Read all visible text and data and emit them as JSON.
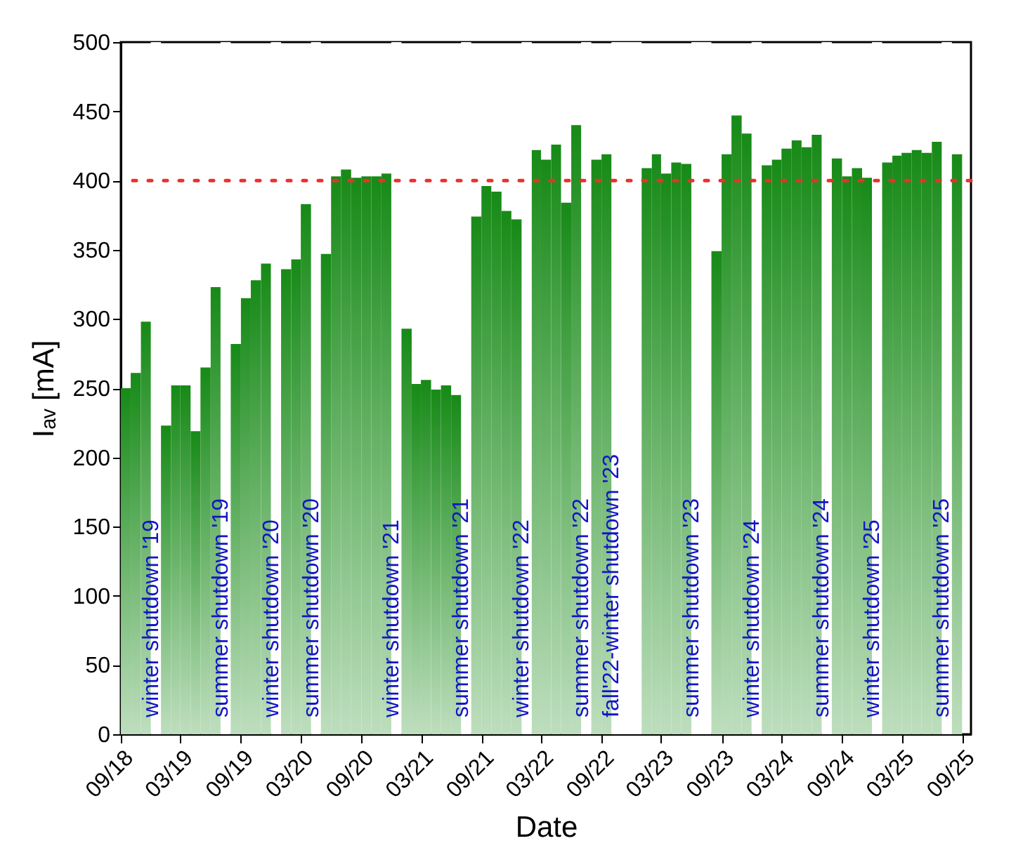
{
  "chart_data": {
    "type": "bar",
    "xlabel": "Date",
    "ylabel": "Iₐᵥ [mA]",
    "series": [
      {
        "color": "#178a17",
        "x": [
          "2018-09",
          "2018-10",
          "2018-11",
          "2019-01",
          "2019-02",
          "2019-03",
          "2019-04",
          "2019-05",
          "2019-06",
          "2019-08",
          "2019-09",
          "2019-10",
          "2019-11",
          "2020-01",
          "2020-02",
          "2020-03",
          "2020-05",
          "2020-06",
          "2020-07",
          "2020-08",
          "2020-09",
          "2020-10",
          "2020-11",
          "2021-01",
          "2021-02",
          "2021-03",
          "2021-04",
          "2021-05",
          "2021-06",
          "2021-08",
          "2021-09",
          "2021-10",
          "2021-11",
          "2021-12",
          "2022-02",
          "2022-03",
          "2022-04",
          "2022-05",
          "2022-06",
          "2022-08",
          "2022-09",
          "2023-01",
          "2023-02",
          "2023-03",
          "2023-04",
          "2023-05",
          "2023-08",
          "2023-09",
          "2023-10",
          "2023-11",
          "2024-01",
          "2024-02",
          "2024-03",
          "2024-04",
          "2024-05",
          "2024-06",
          "2024-08",
          "2024-09",
          "2024-10",
          "2024-11",
          "2025-01",
          "2025-02",
          "2025-03",
          "2025-04",
          "2025-05",
          "2025-06",
          "2025-08"
        ],
        "values": [
          250,
          261,
          298,
          223,
          252,
          252,
          219,
          265,
          323,
          282,
          315,
          328,
          340,
          336,
          343,
          383,
          347,
          403,
          408,
          402,
          403,
          403,
          405,
          293,
          253,
          256,
          249,
          252,
          245,
          374,
          396,
          392,
          378,
          372,
          422,
          415,
          426,
          384,
          440,
          415,
          419,
          409,
          419,
          405,
          413,
          412,
          349,
          419,
          447,
          434,
          411,
          415,
          423,
          429,
          424,
          433,
          416,
          403,
          409,
          402,
          413,
          418,
          420,
          422,
          420,
          428,
          419
        ]
      }
    ],
    "ylim": [
      0,
      500
    ],
    "yticks": [
      0,
      50,
      100,
      150,
      200,
      250,
      300,
      350,
      400,
      450,
      500
    ],
    "xlim": [
      "2018-09-01",
      "2025-09-28"
    ],
    "xticks": [
      {
        "value": "2018-09-01",
        "label": "09/18"
      },
      {
        "value": "2019-03-01",
        "label": "03/19"
      },
      {
        "value": "2019-09-01",
        "label": "09/19"
      },
      {
        "value": "2020-03-01",
        "label": "03/20"
      },
      {
        "value": "2020-09-01",
        "label": "09/20"
      },
      {
        "value": "2021-03-01",
        "label": "03/21"
      },
      {
        "value": "2021-09-01",
        "label": "09/21"
      },
      {
        "value": "2022-03-01",
        "label": "03/22"
      },
      {
        "value": "2022-09-01",
        "label": "09/22"
      },
      {
        "value": "2023-03-01",
        "label": "03/23"
      },
      {
        "value": "2023-09-01",
        "label": "09/23"
      },
      {
        "value": "2024-03-01",
        "label": "03/24"
      },
      {
        "value": "2024-09-01",
        "label": "09/24"
      },
      {
        "value": "2025-03-01",
        "label": "03/25"
      },
      {
        "value": "2025-09-01",
        "label": "09/25"
      }
    ],
    "ref_lines": [
      {
        "axis": "y",
        "value": 400,
        "color": "#e8312c",
        "line_style": "dotted"
      }
    ],
    "bands": [
      {
        "axis": "x",
        "from": "2018-12-01",
        "to": "2019-01-01",
        "label": "winter shutdown '19",
        "color": "#ffffff"
      },
      {
        "axis": "x",
        "from": "2019-07-01",
        "to": "2019-08-01",
        "label": "summer shutdown '19",
        "color": "#ffffff"
      },
      {
        "axis": "x",
        "from": "2019-12-01",
        "to": "2020-01-01",
        "label": "winter shutdown '20",
        "color": "#ffffff"
      },
      {
        "axis": "x",
        "from": "2020-04-01",
        "to": "2020-05-01",
        "label": "summer shutdown '20",
        "color": "#ffffff"
      },
      {
        "axis": "x",
        "from": "2020-12-01",
        "to": "2021-01-01",
        "label": "winter shutdown '21",
        "color": "#ffffff"
      },
      {
        "axis": "x",
        "from": "2021-07-01",
        "to": "2021-08-01",
        "label": "summer shutdown '21",
        "color": "#ffffff"
      },
      {
        "axis": "x",
        "from": "2022-01-01",
        "to": "2022-02-01",
        "label": "winter shutdown '22",
        "color": "#ffffff"
      },
      {
        "axis": "x",
        "from": "2022-07-01",
        "to": "2022-08-01",
        "label": "summer shutdown '22",
        "color": "#ffffff"
      },
      {
        "axis": "x",
        "from": "2022-10-01",
        "to": "2023-01-01",
        "label": "fall'22-winter shutdown '23",
        "color": "#ffffff"
      },
      {
        "axis": "x",
        "from": "2023-06-01",
        "to": "2023-08-01",
        "label": "summer shutdown '23",
        "color": "#ffffff"
      },
      {
        "axis": "x",
        "from": "2023-12-01",
        "to": "2024-01-01",
        "label": "winter shutdown '24",
        "color": "#ffffff"
      },
      {
        "axis": "x",
        "from": "2024-07-01",
        "to": "2024-08-01",
        "label": "summer shutdown '24",
        "color": "#ffffff"
      },
      {
        "axis": "x",
        "from": "2024-12-01",
        "to": "2025-01-01",
        "label": "winter shutdown '25",
        "color": "#ffffff"
      },
      {
        "axis": "x",
        "from": "2025-07-01",
        "to": "2025-08-01",
        "label": "summer shutdown '25",
        "color": "#ffffff"
      }
    ]
  }
}
